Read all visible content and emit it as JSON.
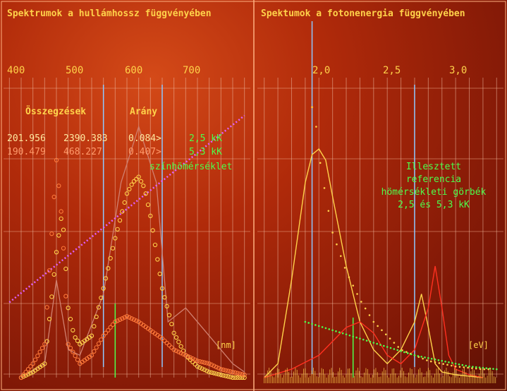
{
  "left_panel": {
    "title": "Spektrumok a hullámhossz függvényében",
    "ticks": [
      "400",
      "500",
      "600",
      "700"
    ],
    "unit": "[nm]",
    "sums_label": "Összegzések",
    "ratio_label": "Arány",
    "rows": [
      {
        "sum1": "201.956",
        "sum2": "2390.383",
        "ratio": "0.084>",
        "temp": "2,5 kK"
      },
      {
        "sum1": "190.479",
        "sum2": "468.227",
        "ratio": "0.407>",
        "temp": "5,3 kK"
      }
    ],
    "temp_label": "színhömérséklet"
  },
  "right_panel": {
    "title": "Spektumok a fotonenergia függvényében",
    "ticks": [
      "2,0",
      "2,5",
      "3,0"
    ],
    "unit": "[eV]",
    "annotation": [
      "Illesztett",
      "referencia",
      "hömérsékleti görbék",
      "2,5 és 5,3 kK"
    ]
  },
  "colors": {
    "yellow": "#ffd24a",
    "orange": "#ff7a3a",
    "green": "#4cff4c",
    "magenta": "#e060ff",
    "gray": "#d08070",
    "red": "#ff3020",
    "blue": "#8ec8ff"
  },
  "chart_data": [
    {
      "type": "line",
      "title": "Spektrumok a hullámhossz függvényében",
      "xlabel": "[nm]",
      "ylabel": "",
      "xlim": [
        370,
        790
      ],
      "x_ticks": [
        400,
        500,
        600,
        700
      ],
      "ylim": [
        0,
        1
      ],
      "grid": true,
      "series": [
        {
          "name": "yellow",
          "x": [
            400,
            420,
            440,
            460,
            470,
            480,
            490,
            500,
            520,
            540,
            560,
            580,
            590,
            600,
            610,
            620,
            630,
            640,
            660,
            680,
            700,
            720,
            740,
            760,
            780
          ],
          "y": [
            0.0,
            0.02,
            0.05,
            0.45,
            0.6,
            0.25,
            0.15,
            0.12,
            0.15,
            0.32,
            0.5,
            0.66,
            0.7,
            0.72,
            0.68,
            0.58,
            0.45,
            0.32,
            0.16,
            0.08,
            0.04,
            0.02,
            0.01,
            0.0,
            0.0
          ]
        },
        {
          "name": "orange",
          "x": [
            400,
            420,
            440,
            460,
            470,
            480,
            500,
            520,
            540,
            560,
            580,
            600,
            620,
            640,
            660,
            680,
            700,
            720,
            740,
            760,
            780
          ],
          "y": [
            0.0,
            0.05,
            0.12,
            0.78,
            0.55,
            0.12,
            0.05,
            0.08,
            0.15,
            0.2,
            0.22,
            0.2,
            0.17,
            0.14,
            0.1,
            0.08,
            0.06,
            0.05,
            0.03,
            0.02,
            0.01
          ]
        },
        {
          "name": "gray",
          "x": [
            400,
            440,
            460,
            480,
            500,
            540,
            570,
            600,
            630,
            650,
            680,
            720,
            760,
            780
          ],
          "y": [
            0.0,
            0.05,
            0.35,
            0.1,
            0.08,
            0.3,
            0.7,
            0.9,
            0.7,
            0.2,
            0.25,
            0.15,
            0.05,
            0.02
          ]
        },
        {
          "name": "magenta",
          "x": [
            380,
            780
          ],
          "y": [
            0.27,
            0.94
          ]
        }
      ]
    },
    {
      "type": "line",
      "title": "Spektumok a fotonenergia függvényében",
      "xlabel": "[eV]",
      "ylabel": "",
      "xlim": [
        1.55,
        3.35
      ],
      "x_ticks": [
        2.0,
        2.5,
        3.0
      ],
      "ylim": [
        0,
        1
      ],
      "grid": true,
      "series": [
        {
          "name": "yellow",
          "x": [
            1.6,
            1.7,
            1.8,
            1.9,
            1.95,
            2.0,
            2.05,
            2.1,
            2.2,
            2.3,
            2.4,
            2.5,
            2.6,
            2.7,
            2.75,
            2.8,
            2.85,
            2.9,
            3.0,
            3.2
          ],
          "y": [
            0.0,
            0.05,
            0.35,
            0.7,
            0.8,
            0.82,
            0.78,
            0.65,
            0.4,
            0.2,
            0.1,
            0.05,
            0.1,
            0.2,
            0.3,
            0.18,
            0.05,
            0.02,
            0.01,
            0.0
          ]
        },
        {
          "name": "red",
          "x": [
            1.6,
            1.8,
            2.0,
            2.2,
            2.3,
            2.4,
            2.5,
            2.6,
            2.7,
            2.8,
            2.85,
            2.9,
            2.95,
            3.0,
            3.1,
            3.2
          ],
          "y": [
            0.0,
            0.03,
            0.08,
            0.18,
            0.2,
            0.16,
            0.08,
            0.05,
            0.1,
            0.25,
            0.4,
            0.25,
            0.08,
            0.03,
            0.01,
            0.0
          ]
        },
        {
          "name": "yellow-dotted",
          "x": [
            1.95,
            1.98,
            2.0,
            2.05,
            2.1,
            2.2,
            2.3,
            2.4,
            2.5,
            2.6,
            2.8,
            3.0,
            3.2
          ],
          "y": [
            0.97,
            0.9,
            0.8,
            0.65,
            0.52,
            0.38,
            0.28,
            0.2,
            0.15,
            0.1,
            0.06,
            0.04,
            0.03
          ]
        },
        {
          "name": "green-dotted",
          "x": [
            1.9,
            2.1,
            2.3,
            2.5,
            2.7,
            2.9,
            3.1,
            3.3
          ],
          "y": [
            0.2,
            0.17,
            0.14,
            0.11,
            0.08,
            0.06,
            0.04,
            0.03
          ]
        }
      ]
    }
  ]
}
